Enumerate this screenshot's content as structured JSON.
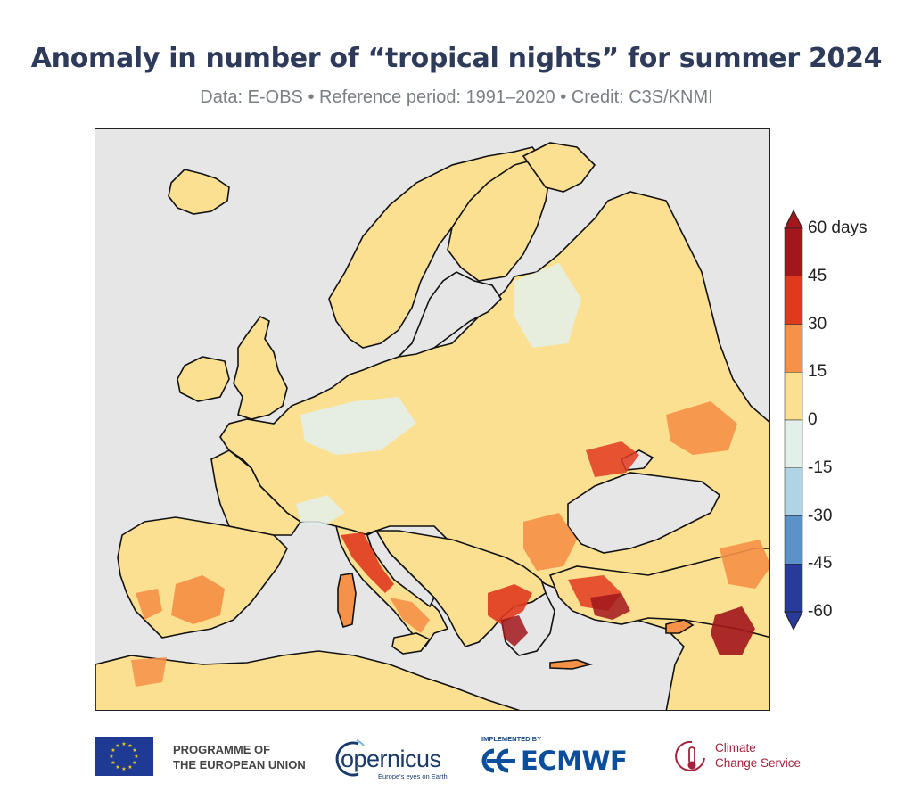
{
  "title": "Anomaly in number of “tropical nights” for summer 2024",
  "subtitle": "Data: E-OBS • Reference period: 1991–2020 • Credit: C3S/KNMI",
  "colorbar": {
    "unit_label": "60 days",
    "ticks": [
      "60 days",
      "45",
      "30",
      "15",
      "0",
      "-15",
      "-30",
      "-45",
      "-60"
    ],
    "colors": {
      "45_60": "#a2161c",
      "30_45": "#e03a1e",
      "15_30": "#f59148",
      "0_15": "#fbe091",
      "m15_0": "#e3f0ea",
      "m30_m15": "#aed4e6",
      "m45_m30": "#5b92c7",
      "m60_m45": "#283a9a"
    }
  },
  "map": {
    "land_no_data_color": "#e6e6e6",
    "sea_color": "#e6e6e6"
  },
  "footer": {
    "eu_line1": "PROGRAMME OF",
    "eu_line2": "THE EUROPEAN UNION",
    "copernicus": "opernicus",
    "copernicus_tagline": "Europe's eyes on Earth",
    "ecmwf_implemented": "IMPLEMENTED BY",
    "ecmwf": "ECMWF",
    "c3s_line1": "Climate",
    "c3s_line2": "Change Service"
  }
}
